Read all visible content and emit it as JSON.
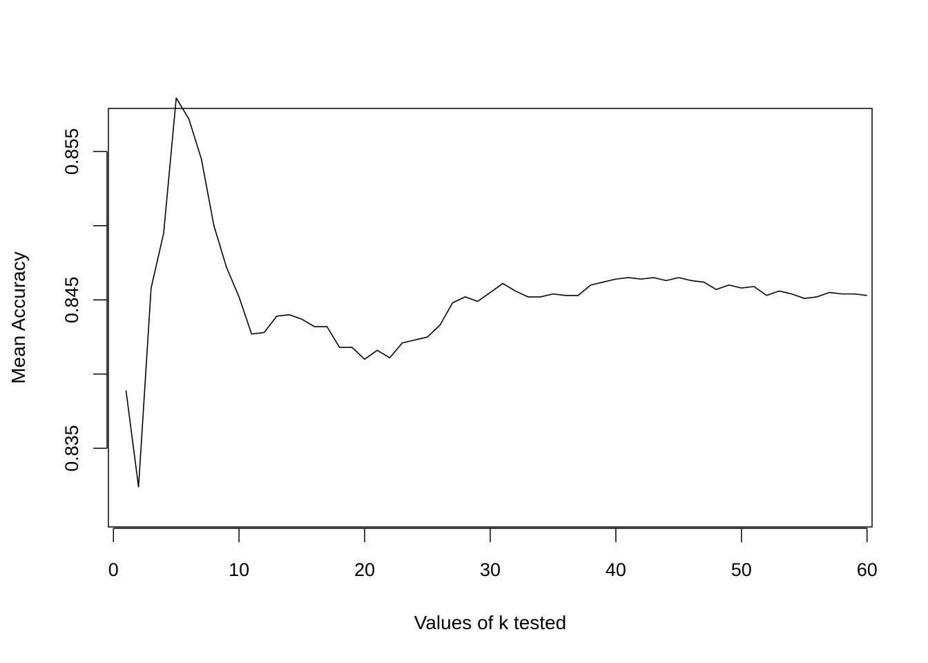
{
  "chart_data": {
    "type": "line",
    "title": "",
    "xlabel": "Values of k tested",
    "ylabel": "Mean Accuracy",
    "xlim": [
      -0.4,
      60.4
    ],
    "ylim": [
      0.8297,
      0.8579
    ],
    "x_ticks": [
      0,
      10,
      20,
      30,
      40,
      50,
      60
    ],
    "x_tick_labels": [
      "0",
      "10",
      "20",
      "30",
      "40",
      "50",
      "60"
    ],
    "y_ticks": [
      0.835,
      0.84,
      0.845,
      0.85,
      0.855
    ],
    "y_tick_labels": [
      "0.835",
      "",
      "0.845",
      "",
      "0.855"
    ],
    "grid": false,
    "series": [
      {
        "color": "#000000",
        "x": [
          1,
          2,
          3,
          4,
          5,
          6,
          7,
          8,
          9,
          10,
          11,
          12,
          13,
          14,
          15,
          16,
          17,
          18,
          19,
          20,
          21,
          22,
          23,
          24,
          25,
          26,
          27,
          28,
          29,
          30,
          31,
          32,
          33,
          34,
          35,
          36,
          37,
          38,
          39,
          40,
          41,
          42,
          43,
          44,
          45,
          46,
          47,
          48,
          49,
          50,
          51,
          52,
          53,
          54,
          55,
          56,
          57,
          58,
          59,
          60
        ],
        "values": [
          0.8389,
          0.8324,
          0.8458,
          0.8495,
          0.8586,
          0.8572,
          0.8545,
          0.85,
          0.8472,
          0.8452,
          0.8427,
          0.8428,
          0.8439,
          0.844,
          0.8437,
          0.8432,
          0.8432,
          0.8418,
          0.8418,
          0.841,
          0.8416,
          0.8411,
          0.8421,
          0.8423,
          0.8425,
          0.8433,
          0.8448,
          0.8452,
          0.8449,
          0.8455,
          0.8461,
          0.8456,
          0.8452,
          0.8452,
          0.8454,
          0.8453,
          0.8453,
          0.846,
          0.8462,
          0.8464,
          0.8465,
          0.8464,
          0.8465,
          0.8463,
          0.8465,
          0.8463,
          0.8462,
          0.8457,
          0.846,
          0.8458,
          0.8459,
          0.8453,
          0.8456,
          0.8454,
          0.8451,
          0.8452,
          0.8455,
          0.8454,
          0.8454,
          0.8453
        ]
      }
    ]
  }
}
